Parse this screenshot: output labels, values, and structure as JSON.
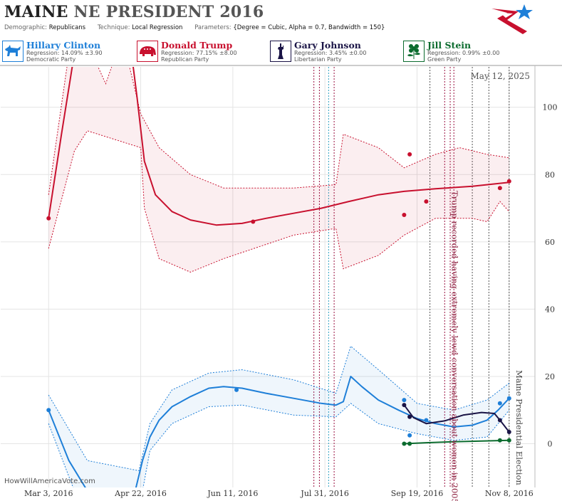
{
  "header": {
    "state": "MAINE",
    "race": "NE PRESIDENT 2016",
    "demographic_label": "Demographic:",
    "demographic": "Republicans",
    "technique_label": "Technique:",
    "technique": "Local Regression",
    "parameters_label": "Parameters:",
    "parameters": "{Degree = Cubic, Alpha = 0.7, Bandwidth = 150}",
    "date": "May 12, 2025",
    "watermark": "HowWillAmericaVote.com"
  },
  "candidates": [
    {
      "name": "Hillary Clinton",
      "regression": "Regression: 14.09% ±3.90",
      "party": "Democratic Party",
      "color": "#1e7fd8",
      "icon": "donkey-icon"
    },
    {
      "name": "Donald Trump",
      "regression": "Regression: 77.15% ±8.00",
      "party": "Republican Party",
      "color": "#c8102e",
      "icon": "elephant-icon"
    },
    {
      "name": "Gary Johnson",
      "regression": "Regression: 3.45% ±0.00",
      "party": "Libertarian Party",
      "color": "#1a1446",
      "icon": "liberty-icon"
    },
    {
      "name": "Jill Stein",
      "regression": "Regression: 0.99% ±0.00",
      "party": "Green Party",
      "color": "#0b6b2e",
      "icon": "flower-icon"
    }
  ],
  "chart_data": {
    "type": "line",
    "x_axis": {
      "range": [
        "2016-02-06",
        "2016-11-22"
      ],
      "ticks": [
        {
          "date": "2016-03-03",
          "label": "Mar 3, 2016"
        },
        {
          "date": "2016-04-22",
          "label": "Apr 22, 2016"
        },
        {
          "date": "2016-06-11",
          "label": "Jun 11, 2016"
        },
        {
          "date": "2016-07-31",
          "label": "Jul 31, 2016"
        },
        {
          "date": "2016-09-19",
          "label": "Sep 19, 2016"
        },
        {
          "date": "2016-11-08",
          "label": "Nov 8, 2016"
        }
      ]
    },
    "y_axis": {
      "range": [
        -13,
        112
      ],
      "ticks": [
        0,
        20,
        40,
        60,
        80,
        100
      ],
      "grid": true,
      "position": "right"
    },
    "series": [
      {
        "name": "Hillary Clinton",
        "color": "#1e7fd8",
        "points": [
          [
            "2016-03-03",
            10
          ],
          [
            "2016-06-13",
            16
          ],
          [
            "2016-09-12",
            13
          ],
          [
            "2016-09-15",
            2.5
          ],
          [
            "2016-09-24",
            7
          ],
          [
            "2016-11-03",
            12
          ],
          [
            "2016-11-08",
            13.5
          ]
        ],
        "fit": [
          [
            "2016-03-03",
            10
          ],
          [
            "2016-03-14",
            -5
          ],
          [
            "2016-03-24",
            -14
          ],
          [
            "2016-04-19",
            -14
          ],
          [
            "2016-04-23",
            -5
          ],
          [
            "2016-04-27",
            2
          ],
          [
            "2016-05-02",
            7
          ],
          [
            "2016-05-09",
            11
          ],
          [
            "2016-05-19",
            14
          ],
          [
            "2016-05-29",
            16.5
          ],
          [
            "2016-06-06",
            17
          ],
          [
            "2016-06-16",
            16.5
          ],
          [
            "2016-06-29",
            15
          ],
          [
            "2016-07-14",
            13.5
          ],
          [
            "2016-07-29",
            12
          ],
          [
            "2016-08-06",
            11.5
          ],
          [
            "2016-08-10",
            12.5
          ],
          [
            "2016-08-14",
            20
          ],
          [
            "2016-08-20",
            17
          ],
          [
            "2016-08-29",
            13
          ],
          [
            "2016-09-09",
            10
          ],
          [
            "2016-09-19",
            7.5
          ],
          [
            "2016-09-29",
            6
          ],
          [
            "2016-10-09",
            5
          ],
          [
            "2016-10-19",
            5.5
          ],
          [
            "2016-10-27",
            7
          ],
          [
            "2016-11-02",
            10
          ],
          [
            "2016-11-08",
            13.5
          ]
        ],
        "upper": [
          [
            "2016-03-03",
            14.5
          ],
          [
            "2016-03-24",
            -5
          ],
          [
            "2016-04-21",
            -8
          ],
          [
            "2016-04-27",
            6
          ],
          [
            "2016-05-09",
            16
          ],
          [
            "2016-05-29",
            21
          ],
          [
            "2016-06-16",
            22
          ],
          [
            "2016-07-14",
            19
          ],
          [
            "2016-08-06",
            15
          ],
          [
            "2016-08-14",
            29
          ],
          [
            "2016-08-29",
            22
          ],
          [
            "2016-09-19",
            12
          ],
          [
            "2016-10-09",
            10
          ],
          [
            "2016-10-27",
            13
          ],
          [
            "2016-11-08",
            18
          ]
        ],
        "lower": [
          [
            "2016-03-03",
            6
          ],
          [
            "2016-03-17",
            -14
          ],
          [
            "2016-04-23",
            -14
          ],
          [
            "2016-04-27",
            -2
          ],
          [
            "2016-05-09",
            6
          ],
          [
            "2016-05-29",
            11
          ],
          [
            "2016-06-16",
            11.5
          ],
          [
            "2016-07-14",
            8.5
          ],
          [
            "2016-08-06",
            8
          ],
          [
            "2016-08-14",
            12
          ],
          [
            "2016-08-29",
            6
          ],
          [
            "2016-09-19",
            3
          ],
          [
            "2016-10-09",
            1
          ],
          [
            "2016-10-27",
            2
          ],
          [
            "2016-11-08",
            10
          ]
        ]
      },
      {
        "name": "Donald Trump",
        "color": "#c8102e",
        "points": [
          [
            "2016-03-03",
            67
          ],
          [
            "2016-06-22",
            66
          ],
          [
            "2016-09-12",
            68
          ],
          [
            "2016-09-15",
            86
          ],
          [
            "2016-09-24",
            72
          ],
          [
            "2016-11-03",
            76
          ],
          [
            "2016-11-08",
            78
          ]
        ],
        "fit": [
          [
            "2016-03-03",
            67
          ],
          [
            "2016-03-10",
            92
          ],
          [
            "2016-03-17",
            116
          ],
          [
            "2016-04-17",
            116
          ],
          [
            "2016-04-20",
            103
          ],
          [
            "2016-04-24",
            84
          ],
          [
            "2016-04-30",
            74
          ],
          [
            "2016-05-09",
            69
          ],
          [
            "2016-05-19",
            66.5
          ],
          [
            "2016-06-02",
            65
          ],
          [
            "2016-06-16",
            65.5
          ],
          [
            "2016-06-29",
            67
          ],
          [
            "2016-07-14",
            68.5
          ],
          [
            "2016-07-29",
            70
          ],
          [
            "2016-08-13",
            72
          ],
          [
            "2016-08-29",
            74
          ],
          [
            "2016-09-12",
            75
          ],
          [
            "2016-09-29",
            75.8
          ],
          [
            "2016-10-19",
            76.5
          ],
          [
            "2016-11-08",
            77.7
          ]
        ],
        "upper": [
          [
            "2016-03-03",
            74
          ],
          [
            "2016-03-14",
            116
          ],
          [
            "2016-03-24",
            119
          ],
          [
            "2016-04-03",
            107
          ],
          [
            "2016-04-12",
            121
          ],
          [
            "2016-04-22",
            98
          ],
          [
            "2016-05-02",
            88
          ],
          [
            "2016-05-19",
            80
          ],
          [
            "2016-06-06",
            76
          ],
          [
            "2016-07-14",
            76
          ],
          [
            "2016-08-06",
            77
          ],
          [
            "2016-08-10",
            92
          ],
          [
            "2016-08-29",
            88
          ],
          [
            "2016-09-12",
            82
          ],
          [
            "2016-09-29",
            86
          ],
          [
            "2016-10-12",
            88
          ],
          [
            "2016-10-27",
            86
          ],
          [
            "2016-11-08",
            85
          ]
        ],
        "lower": [
          [
            "2016-03-03",
            58
          ],
          [
            "2016-03-17",
            87
          ],
          [
            "2016-03-24",
            93
          ],
          [
            "2016-04-22",
            88
          ],
          [
            "2016-04-24",
            70
          ],
          [
            "2016-05-02",
            55
          ],
          [
            "2016-05-19",
            51
          ],
          [
            "2016-06-06",
            55
          ],
          [
            "2016-07-14",
            62
          ],
          [
            "2016-08-06",
            64
          ],
          [
            "2016-08-10",
            52
          ],
          [
            "2016-08-29",
            56
          ],
          [
            "2016-09-12",
            62
          ],
          [
            "2016-09-29",
            67
          ],
          [
            "2016-10-19",
            67
          ],
          [
            "2016-10-27",
            66
          ],
          [
            "2016-11-03",
            72
          ],
          [
            "2016-11-08",
            69
          ]
        ]
      },
      {
        "name": "Gary Johnson",
        "color": "#1a1446",
        "points": [
          [
            "2016-09-12",
            11.5
          ],
          [
            "2016-09-15",
            8
          ],
          [
            "2016-11-03",
            7
          ],
          [
            "2016-11-08",
            3.5
          ]
        ],
        "fit": [
          [
            "2016-09-12",
            11.5
          ],
          [
            "2016-09-17",
            7.8
          ],
          [
            "2016-09-24",
            6
          ],
          [
            "2016-10-04",
            6.8
          ],
          [
            "2016-10-14",
            8.5
          ],
          [
            "2016-10-24",
            9.3
          ],
          [
            "2016-10-31",
            9
          ],
          [
            "2016-11-03",
            7
          ],
          [
            "2016-11-08",
            3.5
          ]
        ]
      },
      {
        "name": "Jill Stein",
        "color": "#0b6b2e",
        "points": [
          [
            "2016-09-12",
            0
          ],
          [
            "2016-09-15",
            0
          ],
          [
            "2016-11-03",
            1
          ],
          [
            "2016-11-08",
            1
          ]
        ],
        "fit": [
          [
            "2016-09-12",
            0
          ],
          [
            "2016-09-24",
            0.3
          ],
          [
            "2016-10-09",
            0.6
          ],
          [
            "2016-10-24",
            0.8
          ],
          [
            "2016-11-08",
            1
          ]
        ]
      }
    ],
    "event_lines": [
      {
        "date": "2016-07-25",
        "color": "#9a1040"
      },
      {
        "date": "2016-07-28",
        "color": "#9a1040"
      },
      {
        "date": "2016-08-02",
        "color": "#2aa0c0"
      },
      {
        "date": "2016-08-05",
        "color": "#9a1040"
      },
      {
        "date": "2016-09-26",
        "color": "#555555"
      },
      {
        "date": "2016-10-04",
        "color": "#9a1040"
      },
      {
        "date": "2016-10-07",
        "color": "#9a1040"
      },
      {
        "date": "2016-10-09",
        "color": "#9a1040"
      },
      {
        "date": "2016-10-19",
        "color": "#555555"
      },
      {
        "date": "2016-10-28",
        "color": "#555555"
      },
      {
        "date": "2016-11-08",
        "color": "#555555"
      }
    ],
    "annotations": [
      {
        "date": "2016-10-08",
        "text": "Trump recorded having extremely lewd conversation about women in 2005",
        "color": "#8a1a3a"
      },
      {
        "date": "2016-11-12",
        "text": "Maine Presidential Election",
        "color": "#444444"
      }
    ]
  }
}
